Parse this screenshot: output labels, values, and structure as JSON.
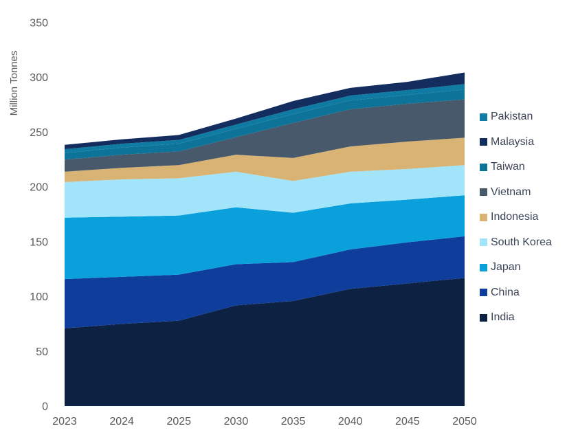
{
  "page": {
    "background": "#ffffff",
    "axis_text_color": "#595959",
    "legend_text_color": "#3b4557"
  },
  "chart_data": {
    "type": "area",
    "stacked": true,
    "title": "",
    "xlabel": "",
    "ylabel": "Million Tonnes",
    "unit": "Million Tonnes",
    "grid": false,
    "legend_position": "right",
    "ylim": [
      0,
      350
    ],
    "y_ticks": [
      0,
      50,
      100,
      150,
      200,
      250,
      300,
      350
    ],
    "categories": [
      "2023",
      "2024",
      "2025",
      "2030",
      "2035",
      "2040",
      "2045",
      "2050"
    ],
    "series": [
      {
        "name": "India",
        "color": "#0d2142",
        "values": [
          71,
          75,
          78,
          92,
          96,
          107,
          112,
          117
        ]
      },
      {
        "name": "China",
        "color": "#0f3d9c",
        "values": [
          45,
          43,
          42,
          37.5,
          35.5,
          36,
          37.5,
          38
        ]
      },
      {
        "name": "Japan",
        "color": "#0aa0dc",
        "values": [
          56,
          55,
          54,
          52,
          45,
          42,
          39,
          37.5
        ]
      },
      {
        "name": "South Korea",
        "color": "#a2e4fa",
        "values": [
          32.5,
          34,
          34,
          32.5,
          29,
          29,
          28,
          27.5
        ]
      },
      {
        "name": "Indonesia",
        "color": "#d9b374",
        "values": [
          9.5,
          10.5,
          12,
          15.5,
          21,
          23,
          25,
          25
        ]
      },
      {
        "name": "Vietnam",
        "color": "#47596b",
        "values": [
          11,
          12,
          12.5,
          16,
          32,
          34,
          34.5,
          35
        ]
      },
      {
        "name": "Taiwan",
        "color": "#0e7398",
        "values": [
          6,
          6.5,
          7,
          7.5,
          8,
          8,
          8,
          9
        ]
      },
      {
        "name": "Pakistan",
        "color": "#0f7ba3",
        "values": [
          3.5,
          3.5,
          3.5,
          4,
          4.5,
          4.5,
          4.5,
          5
        ]
      },
      {
        "name": "Malaysia",
        "color": "#132d5f",
        "values": [
          4,
          4,
          4.5,
          5.5,
          7.5,
          7,
          7.5,
          10.5
        ]
      }
    ],
    "legend_order": [
      "Pakistan",
      "Malaysia",
      "Taiwan",
      "Vietnam",
      "Indonesia",
      "South Korea",
      "Japan",
      "China",
      "India"
    ],
    "totals": [
      238.5,
      243.5,
      247.5,
      262.5,
      278.5,
      290.5,
      296,
      304.5
    ]
  }
}
